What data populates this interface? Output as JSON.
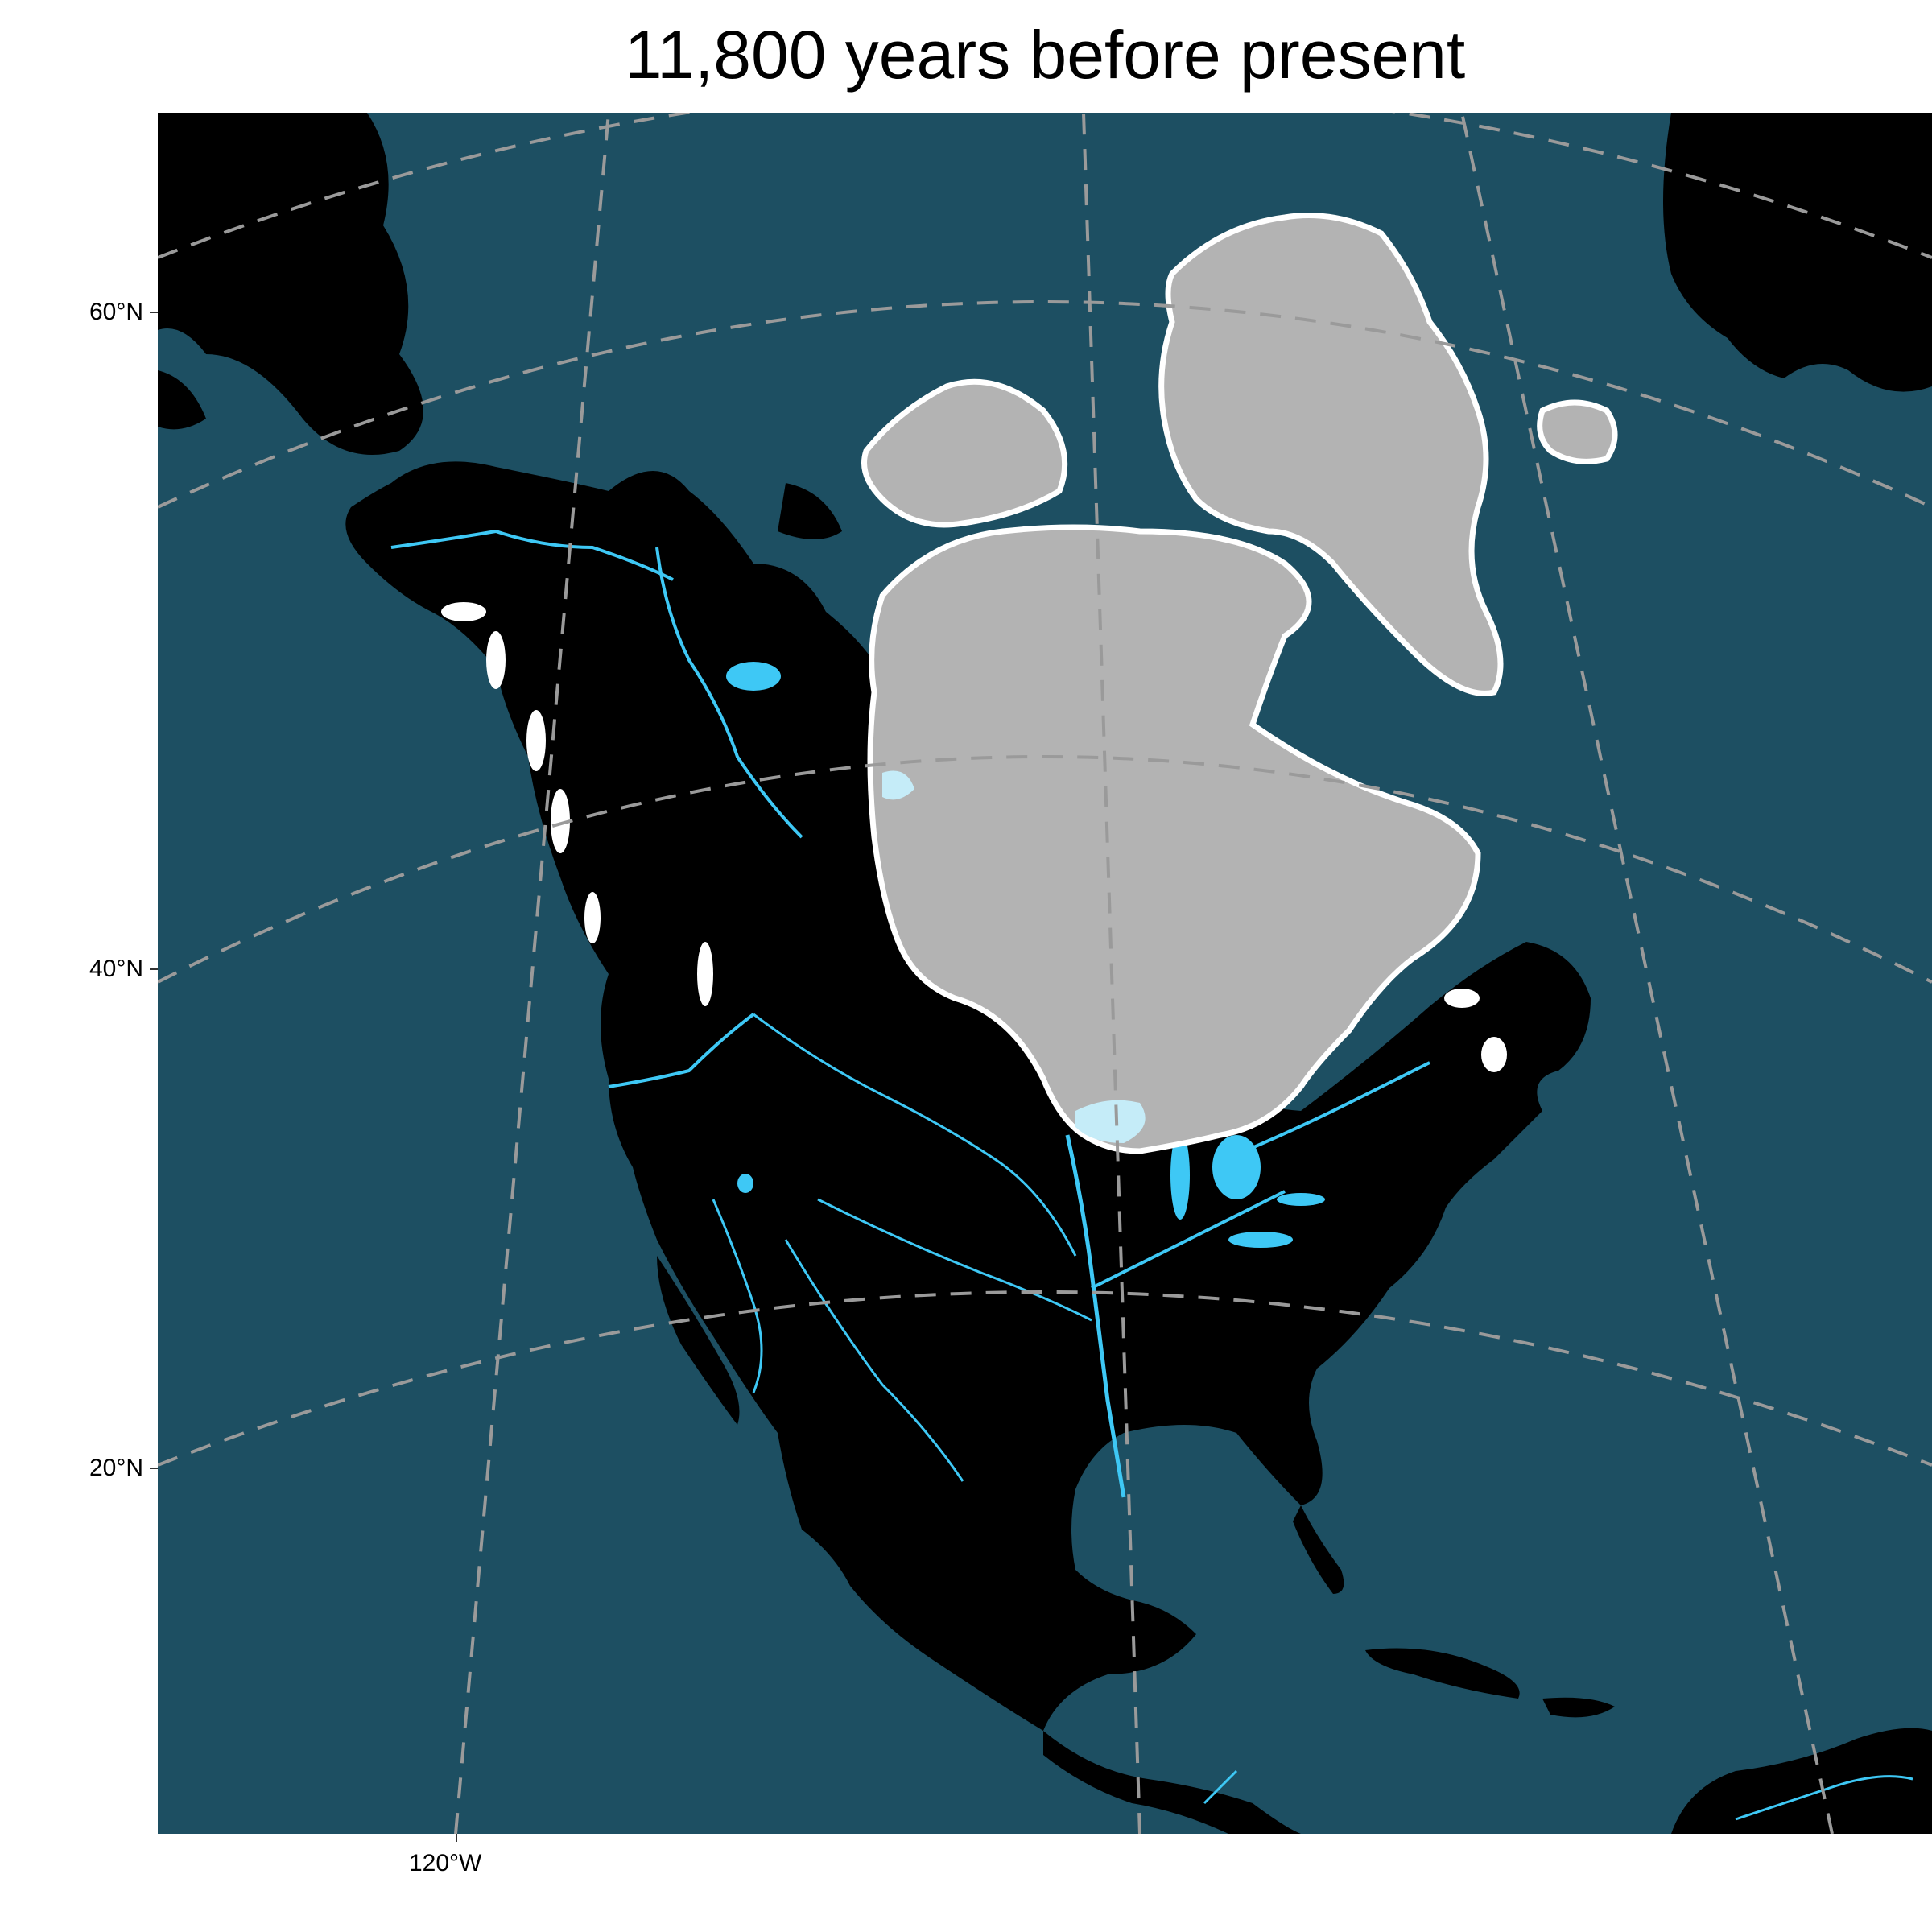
{
  "title": "11,800 years before present",
  "axes": {
    "lat_labels": [
      "60°N",
      "40°N",
      "20°N"
    ],
    "lon_labels": [
      "120°W"
    ]
  },
  "colors": {
    "ocean": "#1d4f62",
    "land": "#000000",
    "rivers": "#3ec8f5",
    "lakes": "#3ec8f5",
    "ice_sheet": "#b3b3b3",
    "ice_outline": "#ffffff",
    "proglacial_lakes": "#c5ecf8",
    "graticule": "#9a9a9a"
  },
  "map": {
    "projection": "polar (north) — curved graticule",
    "features": [
      "land",
      "rivers",
      "lakes",
      "ice-sheet",
      "mountain-glaciers",
      "proglacial-lakes",
      "graticule"
    ]
  }
}
